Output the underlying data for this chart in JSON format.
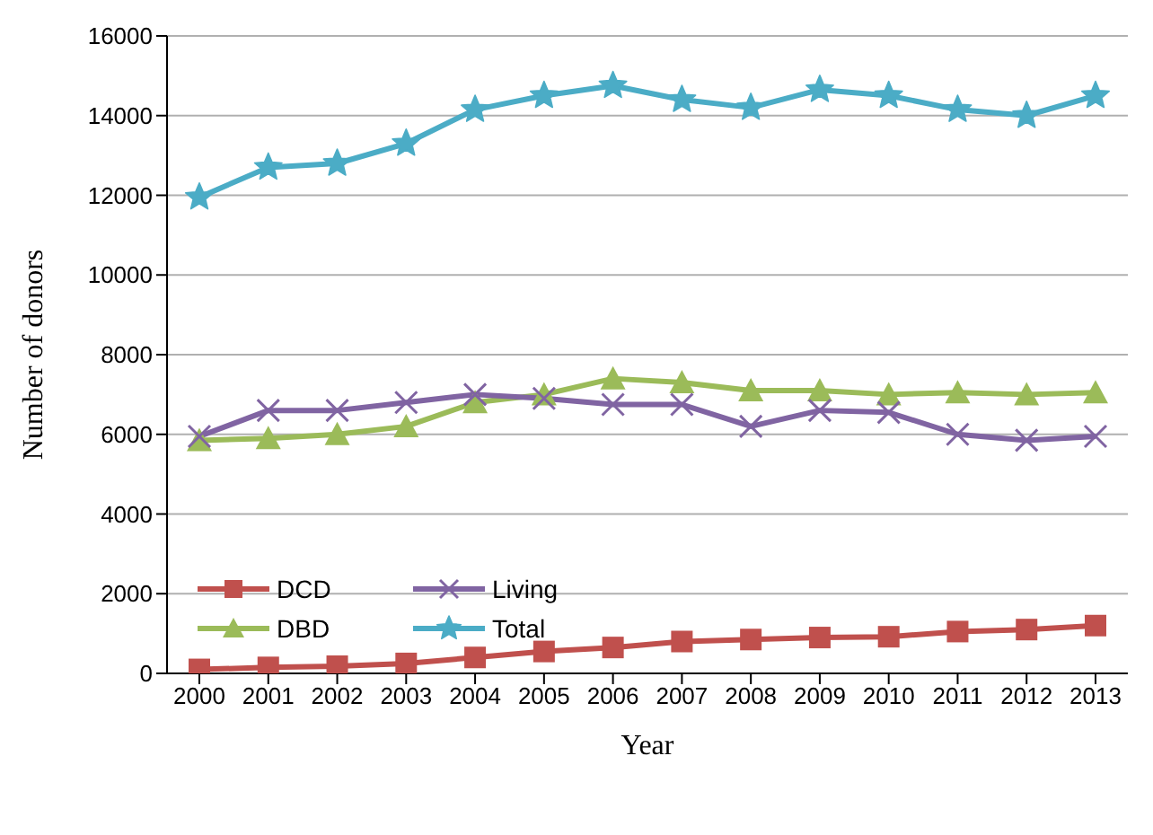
{
  "chart_data": {
    "type": "line",
    "xlabel": "Year",
    "ylabel": "Number of donors",
    "categories": [
      "2000",
      "2001",
      "2002",
      "2003",
      "2004",
      "2005",
      "2006",
      "2007",
      "2008",
      "2009",
      "2010",
      "2011",
      "2012",
      "2013"
    ],
    "series": [
      {
        "name": "DCD",
        "color": "#c0504d",
        "marker": "square",
        "values": [
          100,
          150,
          180,
          250,
          400,
          550,
          650,
          800,
          850,
          900,
          920,
          1050,
          1100,
          1200
        ]
      },
      {
        "name": "DBD",
        "color": "#9bbb59",
        "marker": "triangle",
        "values": [
          5850,
          5900,
          6000,
          6200,
          6800,
          7000,
          7400,
          7300,
          7100,
          7100,
          7000,
          7050,
          7000,
          7050
        ]
      },
      {
        "name": "Living",
        "color": "#8064a2",
        "marker": "cross",
        "values": [
          5950,
          6600,
          6600,
          6800,
          7000,
          6900,
          6750,
          6750,
          6200,
          6600,
          6550,
          6000,
          5850,
          5950
        ]
      },
      {
        "name": "Total",
        "color": "#4bacc6",
        "marker": "star",
        "values": [
          11950,
          12700,
          12800,
          13300,
          14150,
          14500,
          14750,
          14400,
          14200,
          14650,
          14500,
          14150,
          14000,
          14500
        ]
      }
    ],
    "ylim": [
      0,
      16000
    ],
    "yticks": [
      0,
      2000,
      4000,
      6000,
      8000,
      10000,
      12000,
      14000,
      16000
    ],
    "grid": "y",
    "legend": "bottom left"
  }
}
